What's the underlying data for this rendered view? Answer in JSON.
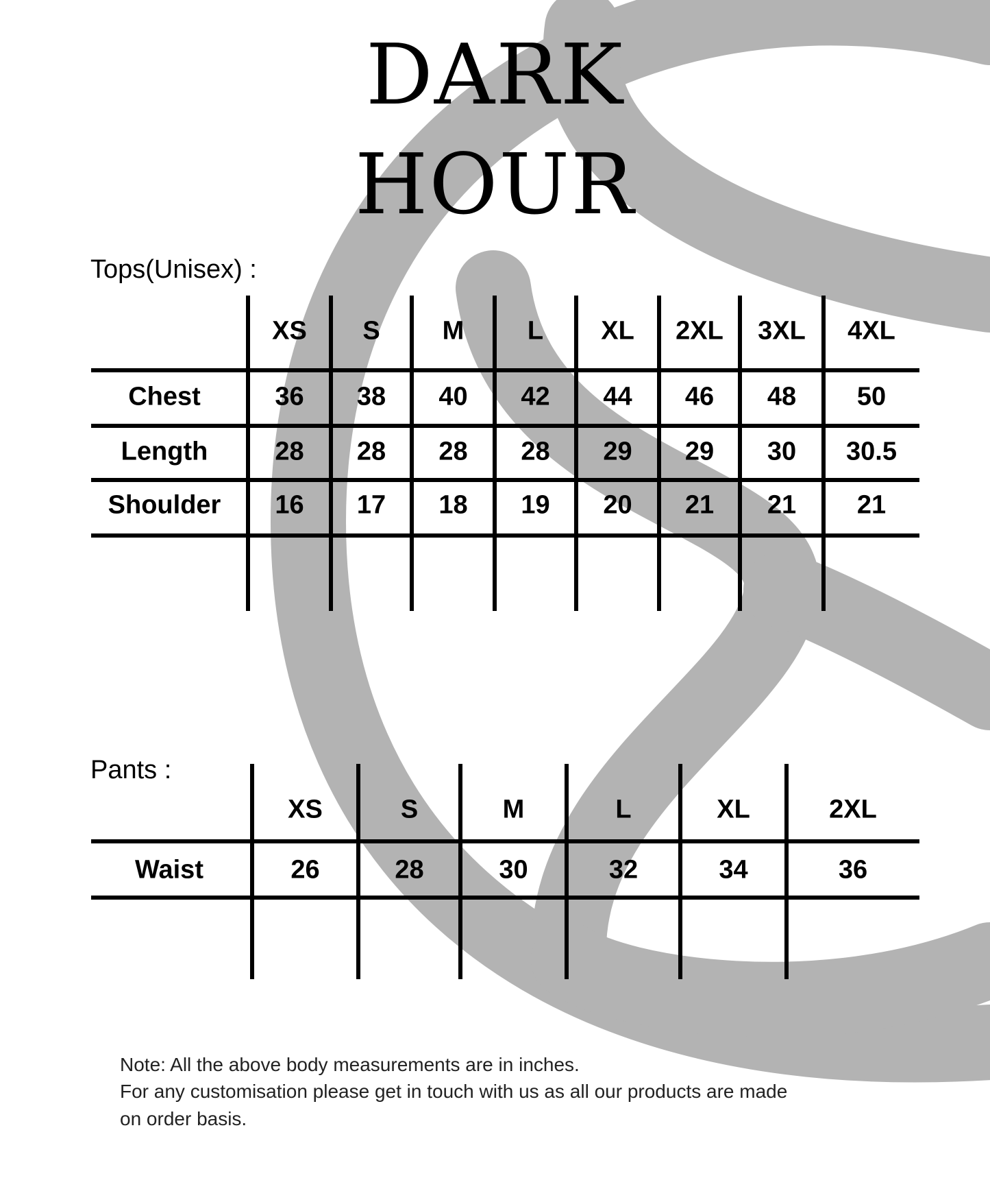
{
  "brand": {
    "line1": "DARK",
    "line2": "HOUR"
  },
  "colors": {
    "watermark": "#b3b3b3",
    "ink": "#000000"
  },
  "tops": {
    "label": "Tops(Unisex) :",
    "sizes": [
      "XS",
      "S",
      "M",
      "L",
      "XL",
      "2XL",
      "3XL",
      "4XL"
    ],
    "rows": [
      {
        "name": "Chest",
        "values": [
          "36",
          "38",
          "40",
          "42",
          "44",
          "46",
          "48",
          "50"
        ]
      },
      {
        "name": "Length",
        "values": [
          "28",
          "28",
          "28",
          "28",
          "29",
          "29",
          "30",
          "30.5"
        ]
      },
      {
        "name": "Shoulder",
        "values": [
          "16",
          "17",
          "18",
          "19",
          "20",
          "21",
          "21",
          "21"
        ]
      }
    ]
  },
  "pants": {
    "label": "Pants :",
    "sizes": [
      "XS",
      "S",
      "M",
      "L",
      "XL",
      "2XL"
    ],
    "rows": [
      {
        "name": "Waist",
        "values": [
          "26",
          "28",
          "30",
          "32",
          "34",
          "36"
        ]
      }
    ]
  },
  "note": {
    "line1": "Note: All the above body measurements are in inches.",
    "line2": "For any customisation please get in touch with us as all our products are made",
    "line3": "on order basis."
  }
}
